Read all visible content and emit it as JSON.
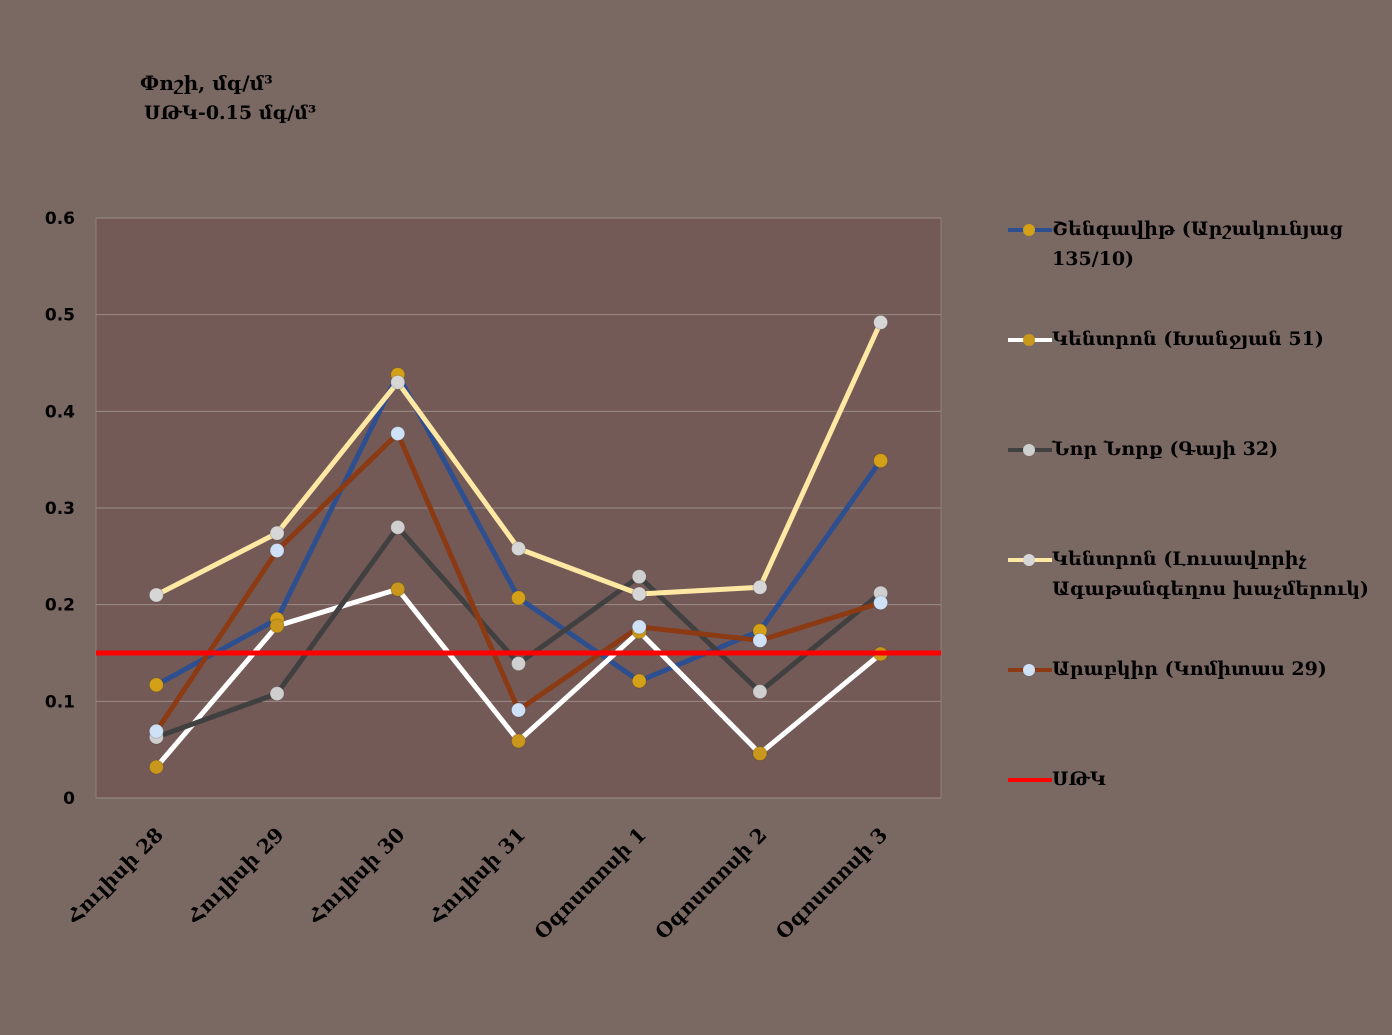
{
  "chart_data": {
    "type": "line",
    "title": "Փոշի, մգ/մ³",
    "subtitle": "ՍԹԿ-0.15 մգ/մ³",
    "categories": [
      "Հուլիսի 28",
      "Հուլիսի 29",
      "Հուլիսի 30",
      "Հուլիսի 31",
      "Օգոստոսի 1",
      "Օգոստոսի 2",
      "Օգոստոսի 3"
    ],
    "ylim": [
      0,
      0.6
    ],
    "yticks": [
      "0",
      "0.1",
      "0.2",
      "0.3",
      "0.4",
      "0.5",
      "0.6"
    ],
    "grid": true,
    "legend_position": "right",
    "plot_background": "#735a56",
    "series": [
      {
        "name": "Շենգավիթ (Արշակունյաց 135/10)",
        "values": [
          0.117,
          0.185,
          0.438,
          0.207,
          0.121,
          0.173,
          0.349
        ],
        "line_color": "#2e4f8f",
        "marker_color": "#d4a017"
      },
      {
        "name": "Կենտրոն (Խանջյան 51)",
        "values": [
          0.032,
          0.178,
          0.216,
          0.059,
          0.172,
          0.046,
          0.149
        ],
        "line_color": "#ffffff",
        "marker_color": "#c9971b"
      },
      {
        "name": "Նոր Նորք (Գայի 32)",
        "values": [
          0.063,
          0.108,
          0.28,
          0.139,
          0.229,
          0.11,
          0.212
        ],
        "line_color": "#404040",
        "marker_color": "#cfcfcf"
      },
      {
        "name": "Կենտրոն (Լուսավորիչ Ագաթանգեղոս խաչմերուկ)",
        "values": [
          0.21,
          0.274,
          0.43,
          0.258,
          0.211,
          0.218,
          0.492
        ],
        "line_color": "#ffe8a3",
        "marker_color": "#d6d6d6"
      },
      {
        "name": "Արաբկիր (Կոմիտաս 29)",
        "values": [
          0.069,
          0.256,
          0.377,
          0.091,
          0.177,
          0.163,
          0.202
        ],
        "line_color": "#8b3a14",
        "marker_color": "#cfe1f7"
      }
    ],
    "reference_line": {
      "name": "ՍԹԿ",
      "value": 0.15,
      "color": "#ff0000"
    }
  }
}
